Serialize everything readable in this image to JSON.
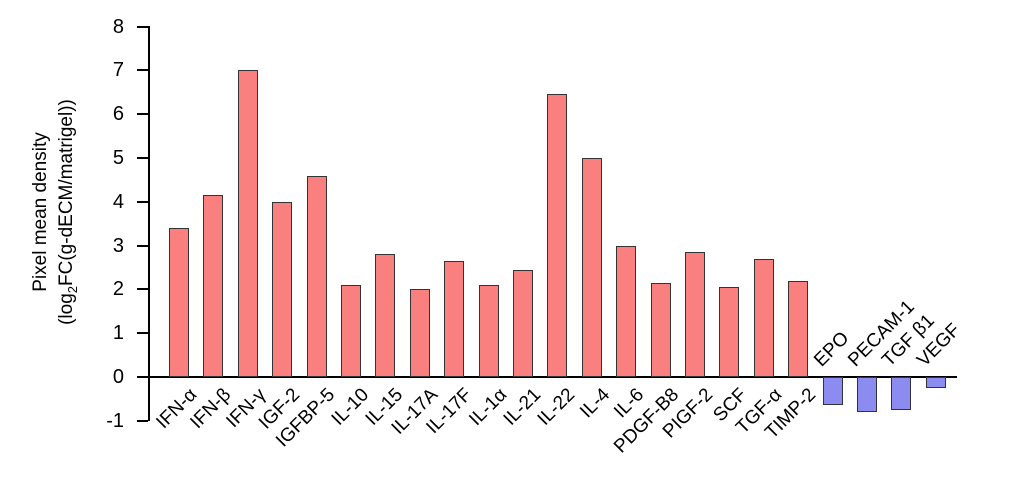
{
  "chart_data": {
    "type": "bar",
    "title": "",
    "ylabel_line1": "Pixel mean density",
    "ylabel_line2_pre": "(log",
    "ylabel_sub": "2",
    "ylabel_line2_post": "FC(g-dECM/matrigel))",
    "xlabel": "",
    "ylim": [
      -1,
      8
    ],
    "yticks": [
      8,
      7,
      6,
      5,
      4,
      3,
      2,
      1,
      0,
      -1
    ],
    "grid": false,
    "legend": "none",
    "bars": [
      {
        "label": "IFN-α",
        "value": 3.4,
        "group": "positive"
      },
      {
        "label": "IFN-β",
        "value": 4.15,
        "group": "positive"
      },
      {
        "label": "IFN-γ",
        "value": 7.0,
        "group": "positive"
      },
      {
        "label": "IGF-2",
        "value": 4.0,
        "group": "positive"
      },
      {
        "label": "IGFBP-5",
        "value": 4.6,
        "group": "positive"
      },
      {
        "label": "IL-10",
        "value": 2.1,
        "group": "positive"
      },
      {
        "label": "IL-15",
        "value": 2.8,
        "group": "positive"
      },
      {
        "label": "IL-17A",
        "value": 2.0,
        "group": "positive"
      },
      {
        "label": "IL-17F",
        "value": 2.65,
        "group": "positive"
      },
      {
        "label": "IL-1α",
        "value": 2.1,
        "group": "positive"
      },
      {
        "label": "IL-21",
        "value": 2.45,
        "group": "positive"
      },
      {
        "label": "IL-22",
        "value": 6.45,
        "group": "positive"
      },
      {
        "label": "IL-4",
        "value": 5.0,
        "group": "positive"
      },
      {
        "label": "IL-6",
        "value": 3.0,
        "group": "positive"
      },
      {
        "label": "PDGF-B8",
        "value": 2.15,
        "group": "positive"
      },
      {
        "label": "PIGF-2",
        "value": 2.85,
        "group": "positive"
      },
      {
        "label": "SCF",
        "value": 2.05,
        "group": "positive"
      },
      {
        "label": "TGF-α",
        "value": 2.7,
        "group": "positive"
      },
      {
        "label": "TIMP-2",
        "value": 2.2,
        "group": "positive"
      },
      {
        "label": "EPO",
        "value": -0.65,
        "group": "negative"
      },
      {
        "label": "PECAM-1",
        "value": -0.8,
        "group": "negative"
      },
      {
        "label": "TGF β1",
        "value": -0.75,
        "group": "negative"
      },
      {
        "label": "VEGF",
        "value": -0.25,
        "group": "negative"
      }
    ],
    "colors": {
      "positive_fill": "#FA8080",
      "negative_fill": "#8C8CF0",
      "bar_border": "#333333",
      "axis": "#000000",
      "text": "#000000",
      "background": "#FFFFFF"
    }
  }
}
